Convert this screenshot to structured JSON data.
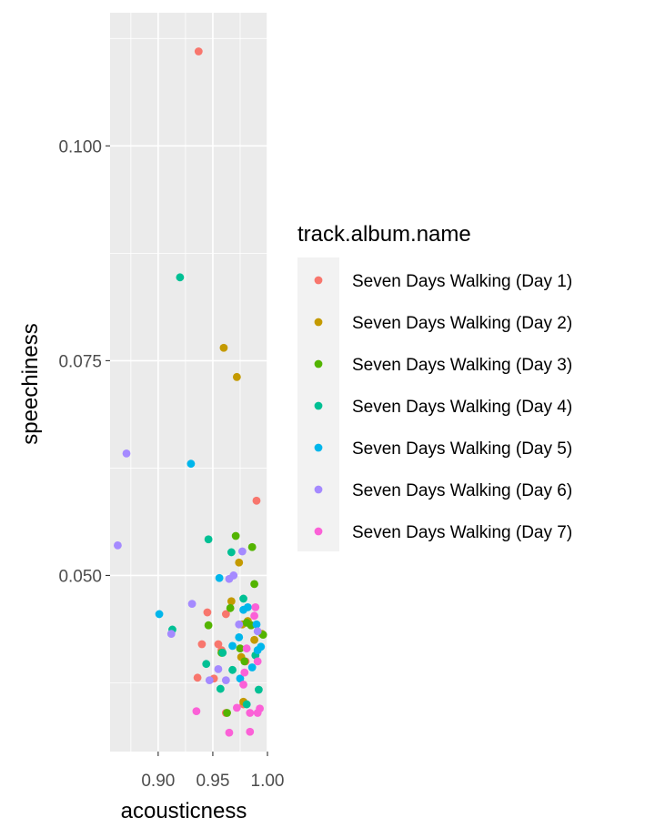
{
  "chart_data": {
    "type": "scatter",
    "xlabel": "acousticness",
    "ylabel": "speechiness",
    "xlim": [
      0.856,
      1.0
    ],
    "ylim": [
      0.0295,
      0.1155
    ],
    "x_ticks": [
      0.9,
      0.95,
      1.0
    ],
    "x_tick_labels": [
      "0.90",
      "0.95",
      "1.00"
    ],
    "y_ticks": [
      0.05,
      0.075,
      0.1
    ],
    "y_tick_labels": [
      "0.050",
      "0.075",
      "0.100"
    ],
    "grid": true,
    "legend": {
      "title": "track.album.name",
      "placement": "right"
    },
    "series": [
      {
        "name": "Seven Days Walking (Day 1)",
        "color": "#F8766D",
        "points": [
          [
            0.937,
            0.111
          ],
          [
            0.99,
            0.0587
          ],
          [
            0.945,
            0.0457
          ],
          [
            0.962,
            0.0455
          ],
          [
            0.94,
            0.042
          ],
          [
            0.955,
            0.042
          ],
          [
            0.958,
            0.0413
          ],
          [
            0.936,
            0.0381
          ],
          [
            0.951,
            0.038
          ],
          [
            0.962,
            0.034
          ],
          [
            0.978,
            0.035
          ],
          [
            0.98,
            0.04
          ]
        ]
      },
      {
        "name": "Seven Days Walking (Day 2)",
        "color": "#C49A00",
        "points": [
          [
            0.96,
            0.0765
          ],
          [
            0.972,
            0.0731
          ],
          [
            0.974,
            0.0515
          ],
          [
            0.967,
            0.047
          ],
          [
            0.977,
            0.0443
          ],
          [
            0.982,
            0.0447
          ],
          [
            0.976,
            0.0405
          ],
          [
            0.978,
            0.0353
          ],
          [
            0.995,
            0.0432
          ],
          [
            0.988,
            0.0425
          ]
        ]
      },
      {
        "name": "Seven Days Walking (Day 3)",
        "color": "#53B400",
        "points": [
          [
            0.971,
            0.0546
          ],
          [
            0.986,
            0.0533
          ],
          [
            0.988,
            0.049
          ],
          [
            0.966,
            0.0462
          ],
          [
            0.946,
            0.0442
          ],
          [
            0.981,
            0.0445
          ],
          [
            0.985,
            0.0442
          ],
          [
            0.996,
            0.0431
          ],
          [
            0.958,
            0.041
          ],
          [
            0.979,
            0.04
          ],
          [
            0.963,
            0.034
          ],
          [
            0.975,
            0.0415
          ]
        ]
      },
      {
        "name": "Seven Days Walking (Day 4)",
        "color": "#00C094",
        "points": [
          [
            0.92,
            0.0847
          ],
          [
            0.946,
            0.0542
          ],
          [
            0.967,
            0.0527
          ],
          [
            0.913,
            0.0437
          ],
          [
            0.978,
            0.0473
          ],
          [
            0.959,
            0.041
          ],
          [
            0.944,
            0.0397
          ],
          [
            0.968,
            0.039
          ],
          [
            0.957,
            0.0368
          ],
          [
            0.992,
            0.0367
          ],
          [
            0.981,
            0.035
          ],
          [
            0.989,
            0.0407
          ]
        ]
      },
      {
        "name": "Seven Days Walking (Day 5)",
        "color": "#00B6EB",
        "points": [
          [
            0.93,
            0.063
          ],
          [
            0.956,
            0.0497
          ],
          [
            0.901,
            0.0455
          ],
          [
            0.978,
            0.046
          ],
          [
            0.982,
            0.0463
          ],
          [
            0.99,
            0.0443
          ],
          [
            0.974,
            0.0428
          ],
          [
            0.968,
            0.0418
          ],
          [
            0.991,
            0.0413
          ],
          [
            0.994,
            0.0417
          ],
          [
            0.986,
            0.0393
          ],
          [
            0.975,
            0.038
          ]
        ]
      },
      {
        "name": "Seven Days Walking (Day 6)",
        "color": "#A58AFF",
        "points": [
          [
            0.863,
            0.0535
          ],
          [
            0.871,
            0.0642
          ],
          [
            0.977,
            0.0528
          ],
          [
            0.965,
            0.0496
          ],
          [
            0.969,
            0.05
          ],
          [
            0.931,
            0.0467
          ],
          [
            0.912,
            0.0432
          ],
          [
            0.974,
            0.0443
          ],
          [
            0.955,
            0.0391
          ],
          [
            0.947,
            0.0378
          ],
          [
            0.962,
            0.0378
          ],
          [
            0.991,
            0.0435
          ]
        ]
      },
      {
        "name": "Seven Days Walking (Day 7)",
        "color": "#FB61D7",
        "points": [
          [
            0.989,
            0.0463
          ],
          [
            0.988,
            0.0453
          ],
          [
            0.981,
            0.0415
          ],
          [
            0.991,
            0.04
          ],
          [
            0.979,
            0.0387
          ],
          [
            0.978,
            0.0373
          ],
          [
            0.935,
            0.0342
          ],
          [
            0.984,
            0.034
          ],
          [
            0.993,
            0.0345
          ],
          [
            0.991,
            0.034
          ],
          [
            0.965,
            0.0317
          ],
          [
            0.984,
            0.0318
          ],
          [
            0.972,
            0.0346
          ]
        ]
      }
    ]
  }
}
